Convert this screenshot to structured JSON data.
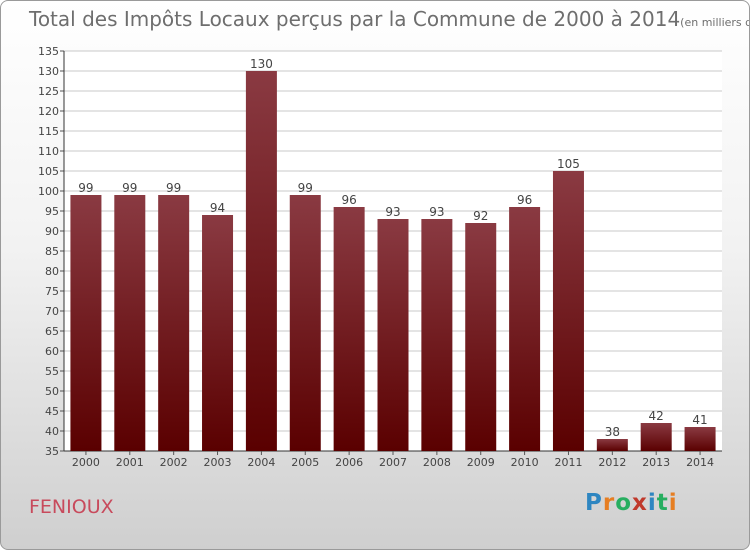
{
  "title": "Total des Impôts Locaux perçus par la Commune de 2000 à 2014",
  "unit": "(en milliers d'€)",
  "commune": "FENIOUX",
  "logo": {
    "letters": [
      "P",
      "r",
      "o",
      "x",
      "i",
      "t",
      "i"
    ],
    "colors": [
      "#2e86c1",
      "#e67e22",
      "#27ae60",
      "#c0392b",
      "#2e86c1",
      "#27ae60",
      "#e67e22"
    ]
  },
  "colors": {
    "bar_top": "#8a3a42",
    "bar_bottom": "#5a0000",
    "grid": "#c8c8c8",
    "text": "#444444"
  },
  "chart_data": {
    "type": "bar",
    "title": "Total des Impôts Locaux perçus par la Commune de 2000 à 2014",
    "categories": [
      "2000",
      "2001",
      "2002",
      "2003",
      "2004",
      "2005",
      "2006",
      "2007",
      "2008",
      "2009",
      "2010",
      "2011",
      "2012",
      "2013",
      "2014"
    ],
    "values": [
      99,
      99,
      99,
      94,
      130,
      99,
      96,
      93,
      93,
      92,
      96,
      105,
      38,
      42,
      41
    ],
    "xlabel": "",
    "ylabel": "",
    "ylim": [
      35,
      135
    ],
    "ytick_step": 5
  }
}
